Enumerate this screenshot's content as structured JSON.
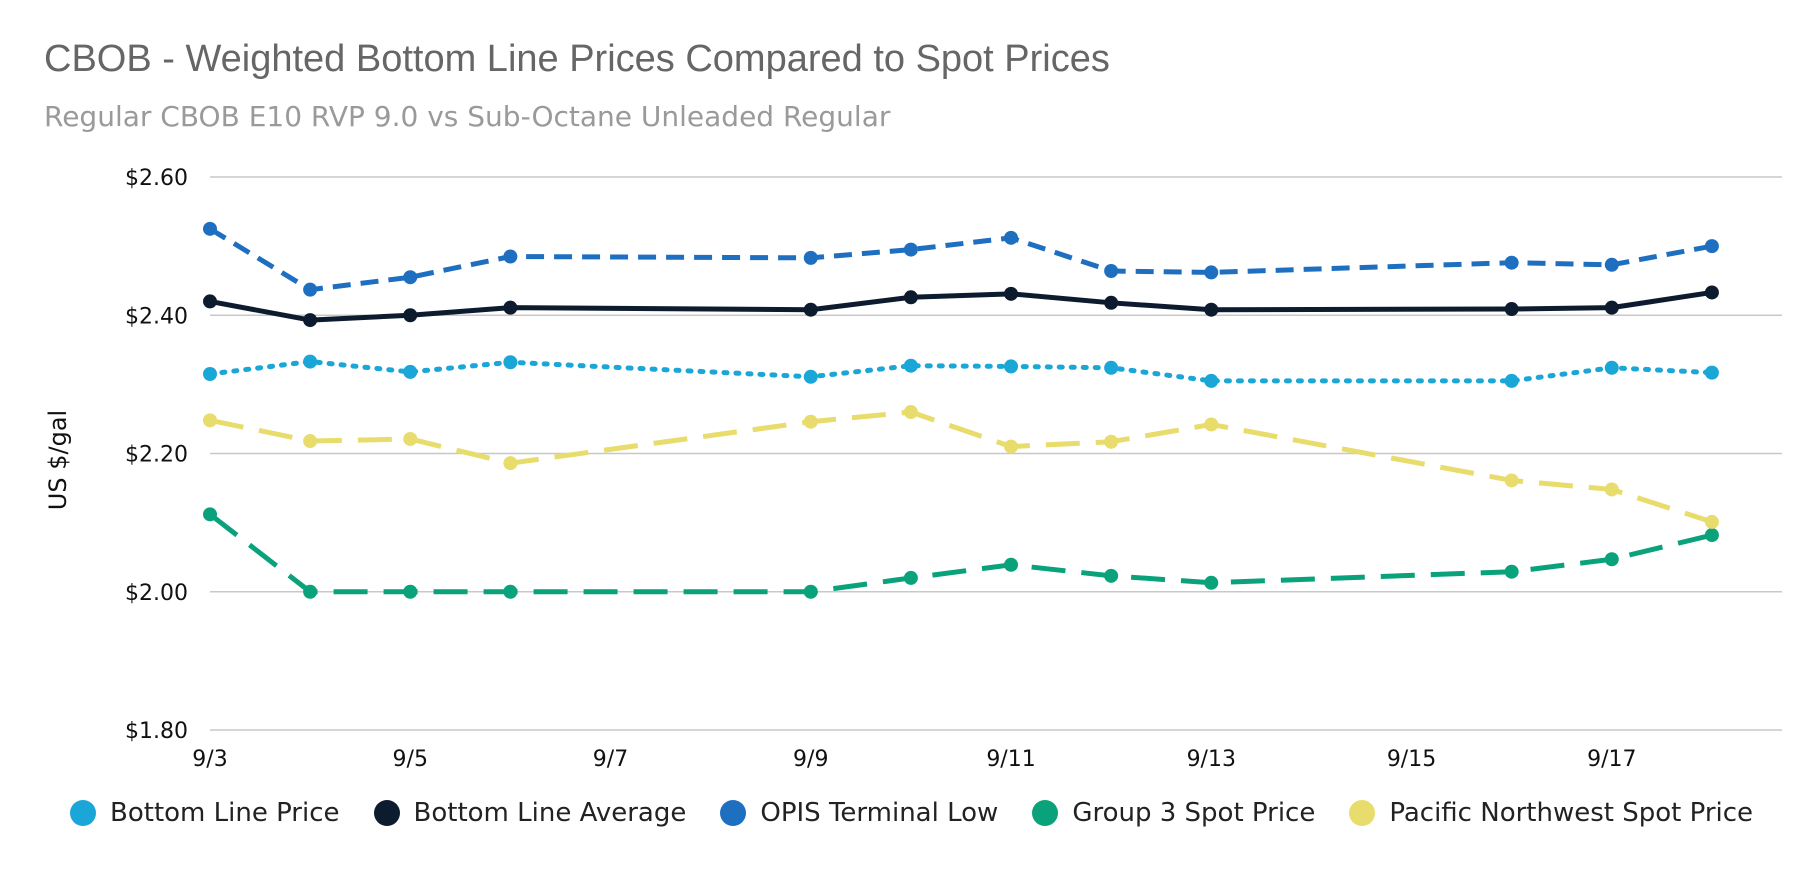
{
  "chart_data": {
    "type": "line",
    "title": "CBOB - Weighted Bottom Line Prices Compared to Spot Prices",
    "subtitle": "Regular CBOB E10 RVP 9.0 vs Sub-Octane Unleaded Regular",
    "xlabel": "",
    "ylabel": "US $/gal",
    "x_range": [
      3,
      18.7
    ],
    "ylim": [
      1.8,
      2.6
    ],
    "grid": true,
    "legend_position": "bottom",
    "x_ticks": [
      3,
      5,
      7,
      9,
      11,
      13,
      15,
      17
    ],
    "x_tick_labels": [
      "9/3",
      "9/5",
      "9/7",
      "9/9",
      "9/11",
      "9/13",
      "9/15",
      "9/17"
    ],
    "y_ticks": [
      1.8,
      2.0,
      2.2,
      2.4,
      2.6
    ],
    "y_tick_labels": [
      "$1.80",
      "$2.00",
      "$2.20",
      "$2.40",
      "$2.60"
    ],
    "x": [
      3,
      4,
      5,
      6,
      9,
      10,
      11,
      12,
      13,
      16,
      17,
      18
    ],
    "series": [
      {
        "name": "Bottom Line Price",
        "color": "#1aa6d6",
        "style": "dotted",
        "values": [
          2.315,
          2.333,
          2.318,
          2.332,
          2.311,
          2.327,
          2.326,
          2.324,
          2.305,
          2.305,
          2.324,
          2.317
        ]
      },
      {
        "name": "Bottom Line Average",
        "color": "#0d1b2e",
        "style": "solid",
        "values": [
          2.42,
          2.393,
          2.4,
          2.411,
          2.408,
          2.426,
          2.431,
          2.418,
          2.408,
          2.409,
          2.411,
          2.433
        ]
      },
      {
        "name": "OPIS Terminal Low",
        "color": "#1f6fc1",
        "style": "dashed",
        "values": [
          2.525,
          2.437,
          2.455,
          2.485,
          2.483,
          2.495,
          2.512,
          2.464,
          2.462,
          2.476,
          2.473,
          2.5
        ]
      },
      {
        "name": "Group 3 Spot Price",
        "color": "#0aa27a",
        "style": "longdash",
        "values": [
          2.112,
          2.0,
          2.0,
          2.0,
          2.0,
          2.02,
          2.039,
          2.023,
          2.013,
          2.029,
          2.047,
          2.082
        ]
      },
      {
        "name": "Pacific Northwest Spot Price",
        "color": "#e8dc6c",
        "style": "longdash",
        "values": [
          2.248,
          2.218,
          2.221,
          2.186,
          2.246,
          2.26,
          2.21,
          2.217,
          2.242,
          2.161,
          2.148,
          2.101
        ]
      }
    ]
  }
}
